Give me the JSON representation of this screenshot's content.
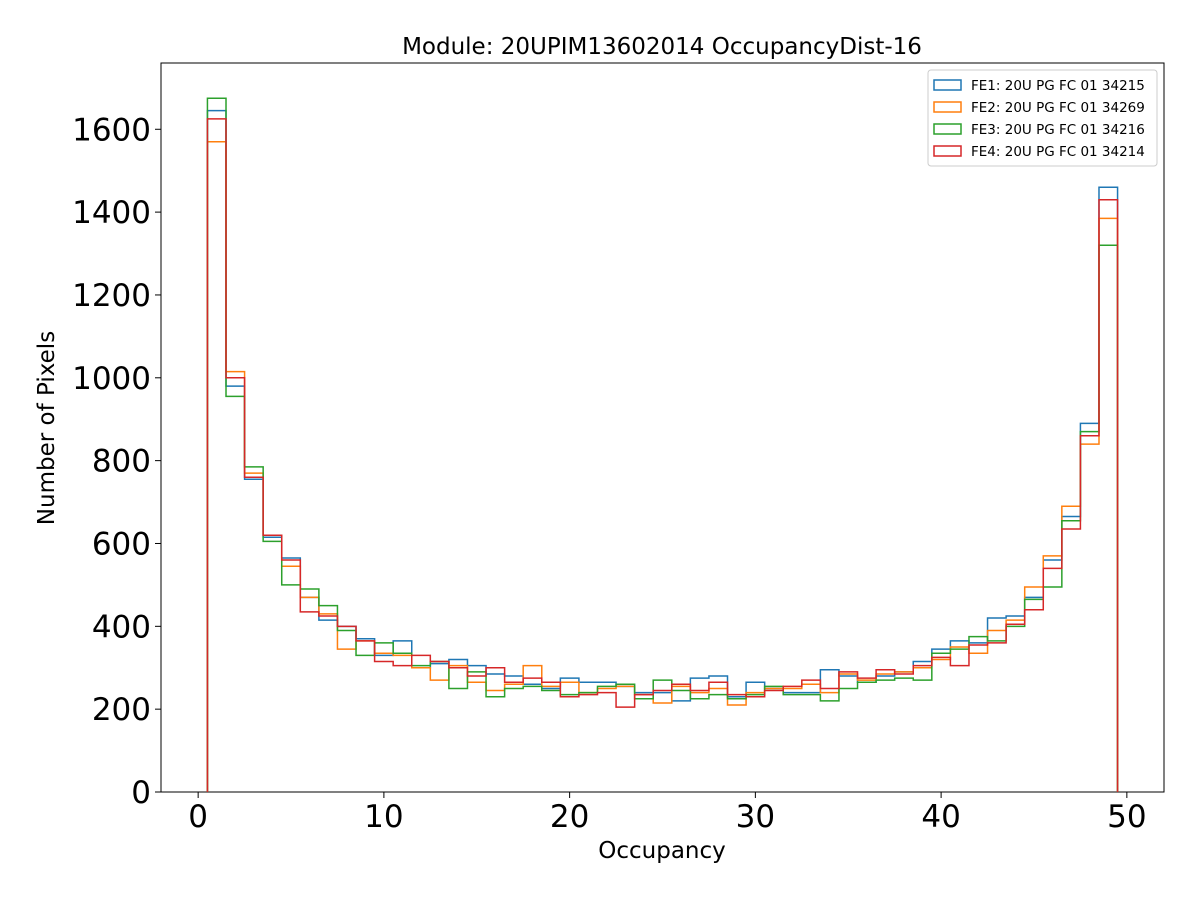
{
  "chart_data": {
    "type": "histogram-step",
    "title": "Module: 20UPIM13602014 OccupancyDist-16",
    "xlabel": "Occupancy",
    "ylabel": "Number of Pixels",
    "xlim": [
      -2,
      52
    ],
    "ylim": [
      0,
      1760
    ],
    "xticks": [
      0,
      10,
      20,
      30,
      40,
      50
    ],
    "yticks": [
      0,
      200,
      400,
      600,
      800,
      1000,
      1200,
      1400,
      1600
    ],
    "grid": false,
    "legend_position": "top-right",
    "bins": {
      "start": 0.5,
      "width": 1,
      "count": 49
    },
    "series": [
      {
        "name": "FE1: 20U PG FC 01 34215",
        "color": "#1f77b4",
        "values": [
          1645,
          980,
          755,
          615,
          565,
          470,
          415,
          400,
          370,
          330,
          365,
          300,
          310,
          320,
          305,
          285,
          280,
          260,
          250,
          275,
          265,
          265,
          255,
          240,
          240,
          220,
          275,
          280,
          230,
          265,
          250,
          240,
          240,
          295,
          280,
          265,
          280,
          290,
          315,
          345,
          365,
          360,
          420,
          425,
          470,
          560,
          665,
          890,
          1460
        ]
      },
      {
        "name": "FE2: 20U PG FC 01 34269",
        "color": "#ff7f0e",
        "values": [
          1570,
          1015,
          770,
          620,
          545,
          470,
          430,
          345,
          365,
          335,
          330,
          300,
          270,
          305,
          265,
          245,
          260,
          305,
          255,
          265,
          240,
          250,
          255,
          235,
          215,
          255,
          240,
          250,
          210,
          240,
          250,
          250,
          260,
          240,
          285,
          270,
          285,
          290,
          300,
          320,
          350,
          335,
          390,
          415,
          495,
          570,
          690,
          840,
          1385
        ]
      },
      {
        "name": "FE3: 20U PG FC 01 34216",
        "color": "#2ca02c",
        "values": [
          1675,
          955,
          785,
          605,
          500,
          490,
          450,
          390,
          330,
          360,
          335,
          305,
          315,
          250,
          290,
          230,
          250,
          255,
          245,
          235,
          240,
          255,
          260,
          225,
          270,
          245,
          225,
          235,
          225,
          235,
          255,
          235,
          235,
          220,
          250,
          265,
          270,
          275,
          270,
          335,
          345,
          375,
          365,
          400,
          465,
          495,
          655,
          870,
          1320
        ]
      },
      {
        "name": "FE4: 20U PG FC 01 34214",
        "color": "#d62728",
        "values": [
          1625,
          1000,
          760,
          620,
          560,
          435,
          425,
          400,
          365,
          315,
          305,
          330,
          315,
          300,
          280,
          300,
          265,
          275,
          265,
          230,
          235,
          240,
          205,
          235,
          245,
          260,
          245,
          265,
          235,
          230,
          245,
          255,
          270,
          250,
          290,
          275,
          295,
          285,
          305,
          325,
          305,
          355,
          360,
          405,
          440,
          540,
          635,
          860,
          1430
        ]
      }
    ]
  }
}
